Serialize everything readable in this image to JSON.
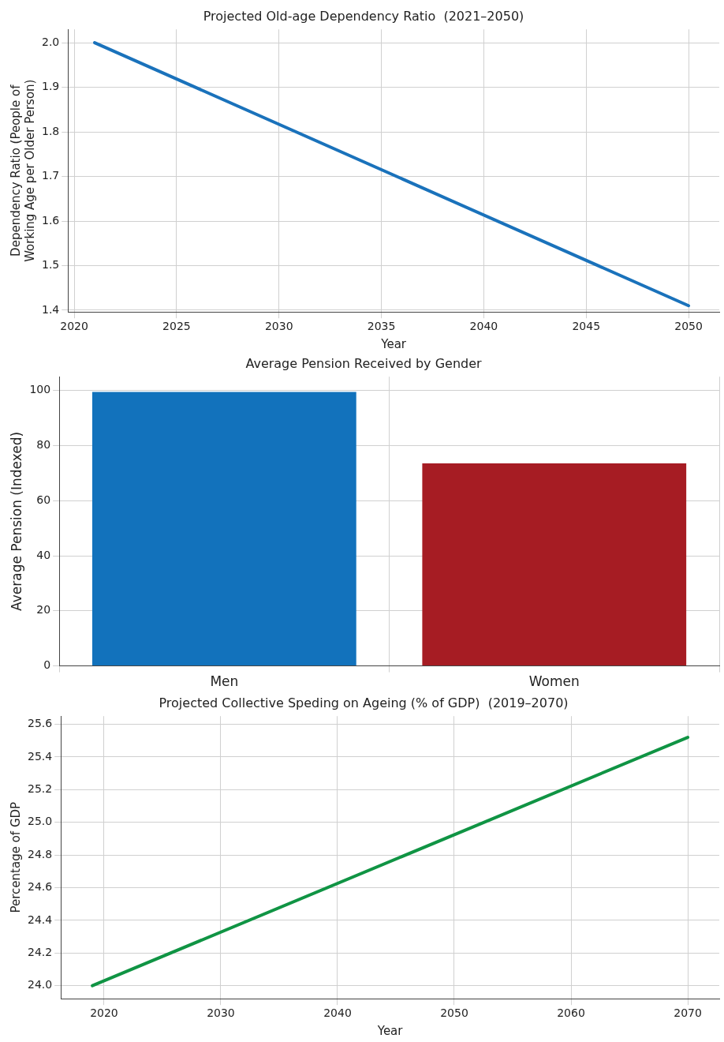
{
  "chart_data": [
    {
      "type": "line",
      "title": "Projected Old-age Dependency Ratio  (2021–2050)",
      "xlabel": "Year",
      "ylabel": "Dependency Ratio (People of Working Age per Older Person)",
      "x": [
        2021,
        2050
      ],
      "series": [
        {
          "color": "#1a72bb",
          "values": [
            2.0,
            1.41
          ]
        }
      ],
      "xlim": [
        2019.7,
        2051.5
      ],
      "xticks": [
        2020,
        2025,
        2030,
        2035,
        2040,
        2045,
        2050
      ],
      "ylim": [
        1.396,
        2.03
      ],
      "yticks": [
        {
          "value": 1.4,
          "label": "1.4"
        },
        {
          "value": 1.5,
          "label": "1.5"
        },
        {
          "value": 1.6,
          "label": "1.6"
        },
        {
          "value": 1.7,
          "label": "1.7"
        },
        {
          "value": 1.8,
          "label": "1.8"
        },
        {
          "value": 1.9,
          "label": "1.9"
        },
        {
          "value": 2.0,
          "label": "2.0"
        }
      ],
      "grid": true,
      "legend": false,
      "marker": "none",
      "line_style": "solid"
    },
    {
      "type": "bar",
      "title": "Average Pension Received by Gender",
      "ylabel": "Average Pension (Indexed)",
      "categories": [
        "Men",
        "Women"
      ],
      "values": [
        99.5,
        73.5
      ],
      "colors": [
        "#1272bc",
        "#a61c23"
      ],
      "ylim": [
        0,
        105
      ],
      "yticks": [
        0,
        20,
        40,
        60,
        80,
        100
      ],
      "grid": true,
      "legend": false
    },
    {
      "type": "line",
      "title": "Projected Collective Speding on Ageing (% of GDP)  (2019–2070)",
      "xlabel": "Year",
      "ylabel": "Percentage of GDP",
      "x": [
        2019,
        2070
      ],
      "series": [
        {
          "color": "#109444",
          "values": [
            24.0,
            25.52
          ]
        }
      ],
      "xlim": [
        2016.3,
        2072.7
      ],
      "xticks": [
        2020,
        2030,
        2040,
        2050,
        2060,
        2070
      ],
      "ylim": [
        23.92,
        25.65
      ],
      "yticks": [
        {
          "value": 24.0,
          "label": "24.0"
        },
        {
          "value": 24.2,
          "label": "24.2"
        },
        {
          "value": 24.4,
          "label": "24.4"
        },
        {
          "value": 24.6,
          "label": "24.6"
        },
        {
          "value": 24.8,
          "label": "24.8"
        },
        {
          "value": 25.0,
          "label": "25.0"
        },
        {
          "value": 25.2,
          "label": "25.2"
        },
        {
          "value": 25.4,
          "label": "25.4"
        },
        {
          "value": 25.6,
          "label": "25.6"
        }
      ],
      "grid": true,
      "legend": false,
      "marker": "none",
      "line_style": "solid"
    }
  ]
}
